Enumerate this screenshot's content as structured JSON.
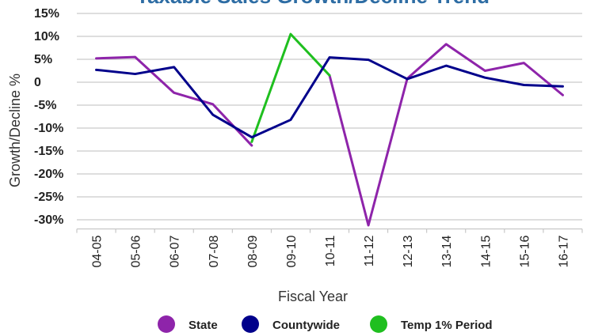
{
  "chart_data": {
    "type": "line",
    "title": "Taxable Sales Growth/Decline Trend",
    "xlabel": "Fiscal Year",
    "ylabel": "Growth/Decline %",
    "categories": [
      "04-05",
      "05-06",
      "06-07",
      "07-08",
      "08-09",
      "09-10",
      "10-11",
      "11-12",
      "12-13",
      "13-14",
      "14-15",
      "15-16",
      "16-17"
    ],
    "ylim": [
      -32,
      15
    ],
    "yticks": [
      15,
      10,
      5,
      0,
      -5,
      -10,
      -15,
      -20,
      -25,
      -30
    ],
    "ytick_labels": [
      "15%",
      "10%",
      "5%",
      "0",
      "-5%",
      "-10%",
      "-15%",
      "-20%",
      "-25%",
      "-30%"
    ],
    "grid": true,
    "legend_position": "bottom",
    "series": [
      {
        "name": "State",
        "color": "#8e24aa",
        "values": [
          5.2,
          5.5,
          -2.3,
          -4.8,
          -13.8,
          null,
          1.5,
          -31.2,
          0.8,
          8.3,
          2.5,
          4.2,
          -2.8
        ]
      },
      {
        "name": "Countywide",
        "color": "#00008b",
        "values": [
          2.7,
          1.8,
          3.3,
          -7.1,
          -12.0,
          -8.2,
          5.4,
          4.9,
          0.7,
          3.6,
          1.0,
          -0.6,
          -0.9
        ]
      },
      {
        "name": "Temp 1% Period",
        "color": "#1fbf1f",
        "values": [
          null,
          null,
          null,
          null,
          -13.0,
          10.5,
          1.5,
          null,
          null,
          null,
          null,
          null,
          null
        ]
      }
    ]
  }
}
